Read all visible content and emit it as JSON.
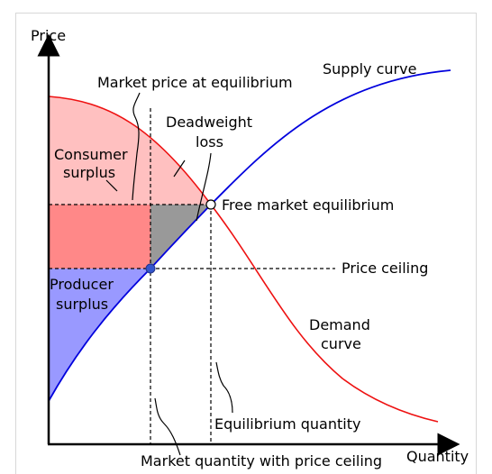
{
  "axes": {
    "y_label": "Price",
    "x_label": "Quantity"
  },
  "labels": {
    "supply_curve": "Supply curve",
    "demand_curve_line1": "Demand",
    "demand_curve_line2": "curve",
    "market_price": "Market price at equilibrium",
    "deadweight_line1": "Deadweight",
    "deadweight_line2": "loss",
    "consumer_line1": "Consumer",
    "consumer_line2": "surplus",
    "producer_line1": "Producer",
    "producer_line2": "surplus",
    "free_market_eq": "Free market equilibrium",
    "price_ceiling": "Price ceiling",
    "equilibrium_quantity": "Equilibrium quantity",
    "market_quantity_ceiling": "Market quantity with price ceiling"
  },
  "colors": {
    "supply": "#0000dd",
    "demand": "#ee1111",
    "consumer_light": "#ffc0c0",
    "consumer_dark": "#ff8888",
    "producer": "#9999ff",
    "deadweight": "#999999",
    "dashed": "#000000"
  }
}
